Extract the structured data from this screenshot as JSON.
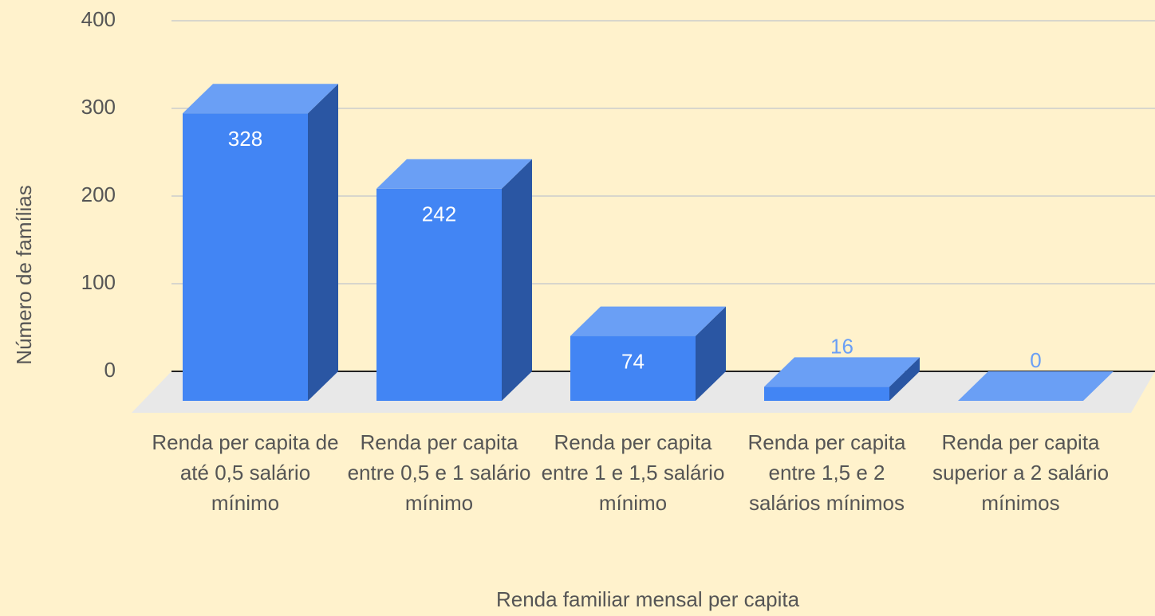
{
  "chart_data": {
    "type": "bar3d",
    "categories": [
      "Renda per capita de até 0,5 salário mínimo",
      "Renda per capita entre 0,5 e 1 salário mínimo",
      "Renda per capita entre 1 e 1,5 salário mínimo",
      "Renda per capita entre 1,5 e 2 salários mínimos",
      "Renda per capita superior a 2 salário mínimos"
    ],
    "values": [
      328,
      242,
      74,
      16,
      0
    ],
    "color": "#4285f4",
    "ylim": [
      0,
      400
    ],
    "yticks": [
      0,
      100,
      200,
      300,
      400
    ],
    "grid": true,
    "xlabel": "Renda familiar mensal per capita",
    "ylabel": "Número de famílias"
  }
}
